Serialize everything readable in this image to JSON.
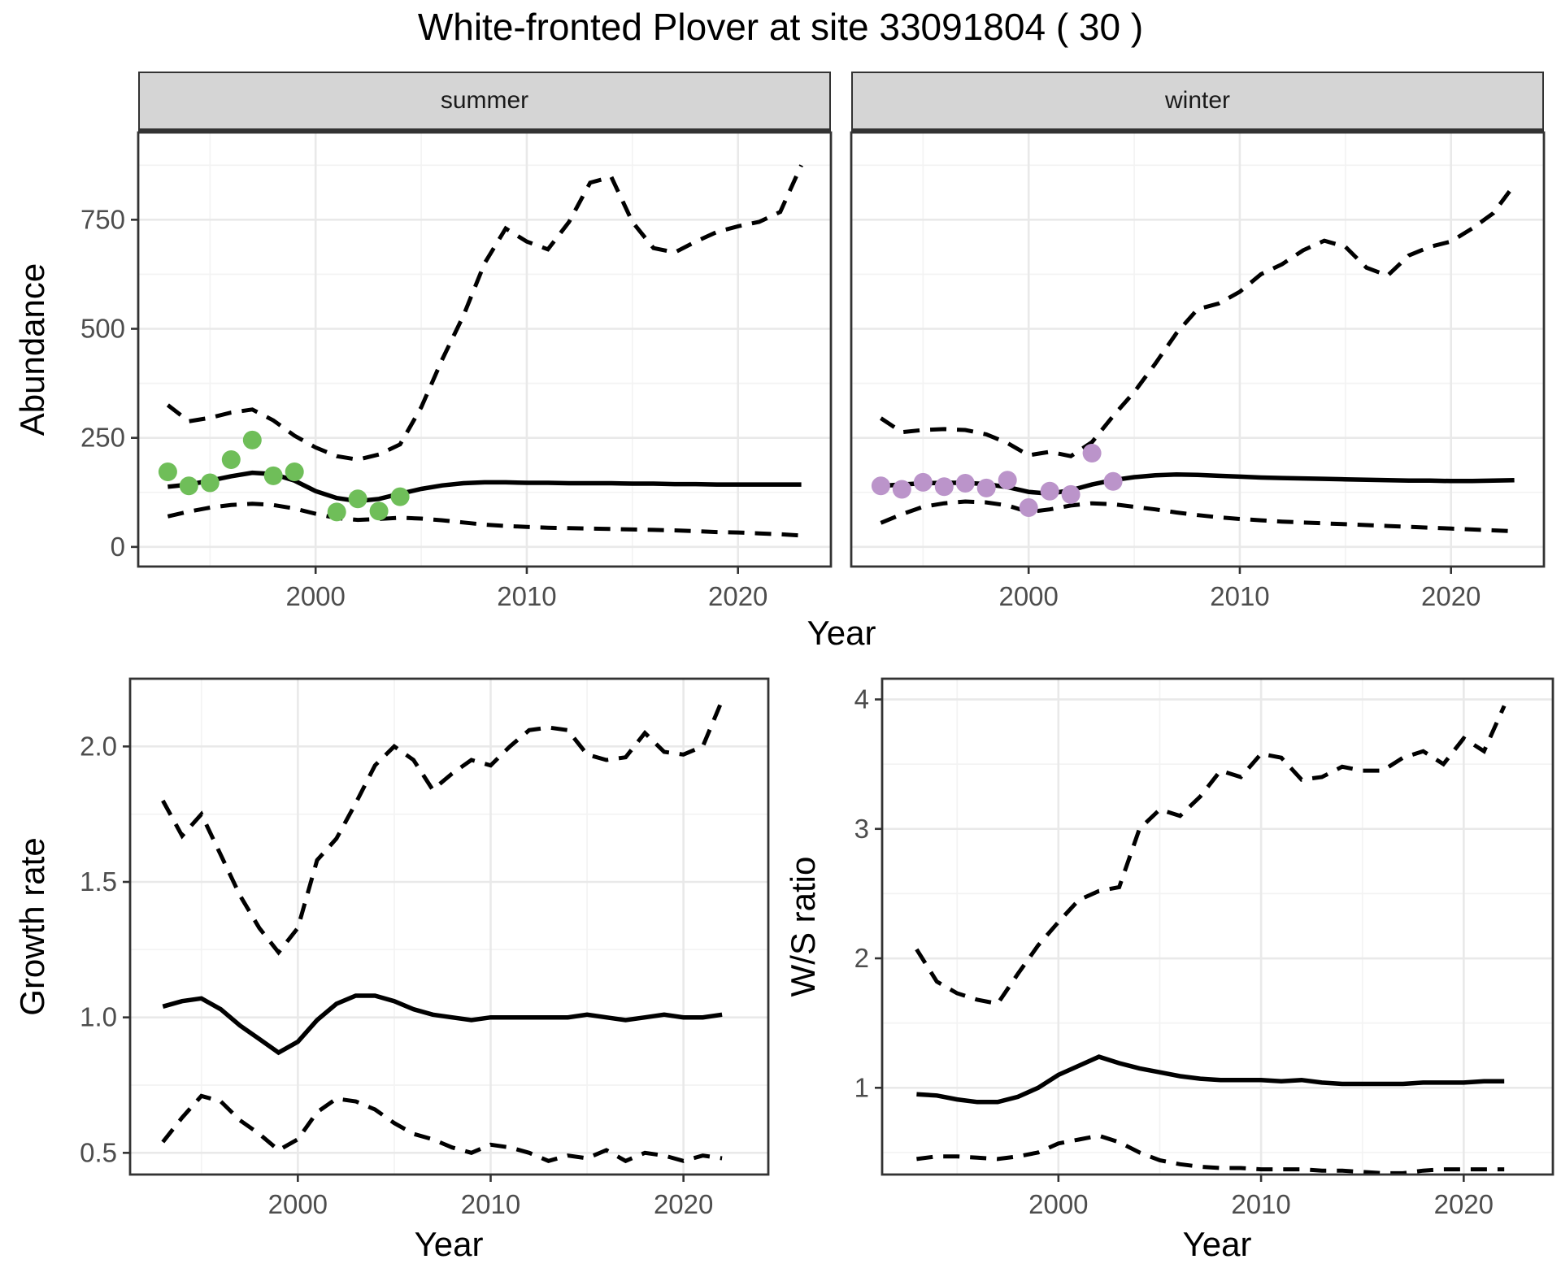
{
  "title": "White-fronted Plover at site 33091804 ( 30 )",
  "facets": {
    "summer": "summer",
    "winter": "winter"
  },
  "axis_titles": {
    "x": "Year",
    "abundance": "Abundance",
    "growth": "Growth rate",
    "ws": "W/S ratio"
  },
  "colors": {
    "point_summer": "#6FBE59",
    "point_winter": "#BB94CA",
    "ci_line": "#000000",
    "fit_line": "#000000",
    "grid_major": "#E9E9E9",
    "grid_minor": "#F3F3F3",
    "panel_border": "#333333",
    "strip_bg": "#D5D5D5",
    "strip_text": "#1A1A1A",
    "tick_label": "#4D4D4D",
    "axis_title": "#000000",
    "background": "#FFFFFF"
  },
  "chart_data": [
    {
      "id": "abundance-summer",
      "type": "line",
      "facet": "summer",
      "xlabel": "Year",
      "ylabel": "Abundance",
      "x_domain": [
        1991.6,
        2024.4
      ],
      "y_domain": [
        -45,
        950
      ],
      "x_ticks": [
        2000,
        2010,
        2020
      ],
      "x_tick_labels": [
        "2000",
        "2010",
        "2020"
      ],
      "x_minor": [
        1995,
        2005,
        2015
      ],
      "y_ticks": [
        0,
        250,
        500,
        750
      ],
      "y_tick_labels": [
        "0",
        "250",
        "500",
        "750"
      ],
      "y_minor": [
        125,
        375,
        625,
        875
      ],
      "series": [
        {
          "name": "upper-95ci",
          "style": "dashed",
          "x": [
            1993,
            1994,
            1995,
            1996,
            1997,
            1998,
            1999,
            2000,
            2001,
            2002,
            2003,
            2004,
            2005,
            2006,
            2007,
            2008,
            2009,
            2010,
            2011,
            2012,
            2013,
            2014,
            2015,
            2016,
            2017,
            2018,
            2019,
            2020,
            2021,
            2022,
            2023
          ],
          "y": [
            325,
            288,
            296,
            308,
            315,
            290,
            255,
            228,
            208,
            200,
            212,
            235,
            320,
            430,
            530,
            650,
            730,
            700,
            682,
            745,
            835,
            848,
            745,
            685,
            675,
            700,
            722,
            735,
            745,
            768,
            875
          ]
        },
        {
          "name": "median-fit",
          "style": "solid",
          "x": [
            1993,
            1994,
            1995,
            1996,
            1997,
            1998,
            1999,
            2000,
            2001,
            2002,
            2003,
            2004,
            2005,
            2006,
            2007,
            2008,
            2009,
            2010,
            2011,
            2012,
            2013,
            2014,
            2015,
            2016,
            2017,
            2018,
            2019,
            2020,
            2021,
            2022,
            2023
          ],
          "y": [
            138,
            143,
            152,
            162,
            170,
            167,
            152,
            128,
            112,
            105,
            110,
            122,
            133,
            141,
            146,
            148,
            148,
            147,
            147,
            146,
            146,
            146,
            145,
            145,
            144,
            144,
            143,
            143,
            143,
            143,
            143
          ]
        },
        {
          "name": "lower-95ci",
          "style": "dashed",
          "x": [
            1993,
            1994,
            1995,
            1996,
            1997,
            1998,
            1999,
            2000,
            2001,
            2002,
            2003,
            2004,
            2005,
            2006,
            2007,
            2008,
            2009,
            2010,
            2011,
            2012,
            2013,
            2014,
            2015,
            2016,
            2017,
            2018,
            2019,
            2020,
            2021,
            2022,
            2023
          ],
          "y": [
            70,
            81,
            90,
            96,
            99,
            96,
            88,
            76,
            66,
            62,
            64,
            67,
            65,
            61,
            56,
            51,
            48,
            46,
            44,
            43,
            42,
            41,
            40,
            39,
            38,
            36,
            34,
            33,
            31,
            29,
            26
          ]
        }
      ],
      "points": {
        "name": "observed-summer-counts",
        "color_key": "point_summer",
        "x": [
          1993,
          1994,
          1995,
          1996,
          1997,
          1998,
          1999,
          2001,
          2002,
          2003,
          2004
        ],
        "y": [
          172,
          140,
          147,
          200,
          245,
          163,
          172,
          80,
          110,
          82,
          115
        ]
      }
    },
    {
      "id": "abundance-winter",
      "type": "line",
      "facet": "winter",
      "xlabel": "Year",
      "ylabel": "Abundance",
      "x_domain": [
        1991.6,
        2024.4
      ],
      "y_domain": [
        -45,
        950
      ],
      "x_ticks": [
        2000,
        2010,
        2020
      ],
      "x_tick_labels": [
        "2000",
        "2010",
        "2020"
      ],
      "x_minor": [
        1995,
        2005,
        2015
      ],
      "y_ticks": [
        0,
        250,
        500,
        750
      ],
      "y_tick_labels": [
        "0",
        "250",
        "500",
        "750"
      ],
      "y_minor": [
        125,
        375,
        625,
        875
      ],
      "series": [
        {
          "name": "upper-95ci",
          "style": "dashed",
          "x": [
            1993,
            1994,
            1995,
            1996,
            1997,
            1998,
            1999,
            2000,
            2001,
            2002,
            2003,
            2004,
            2005,
            2006,
            2007,
            2008,
            2009,
            2010,
            2011,
            2012,
            2013,
            2014,
            2015,
            2016,
            2017,
            2018,
            2019,
            2020,
            2021,
            2022,
            2023
          ],
          "y": [
            295,
            263,
            268,
            270,
            268,
            258,
            238,
            210,
            218,
            208,
            240,
            300,
            355,
            420,
            490,
            545,
            558,
            585,
            625,
            648,
            680,
            702,
            688,
            640,
            622,
            668,
            688,
            700,
            730,
            765,
            830
          ]
        },
        {
          "name": "median-fit",
          "style": "solid",
          "x": [
            1993,
            1994,
            1995,
            1996,
            1997,
            1998,
            1999,
            2000,
            2001,
            2002,
            2003,
            2004,
            2005,
            2006,
            2007,
            2008,
            2009,
            2010,
            2011,
            2012,
            2013,
            2014,
            2015,
            2016,
            2017,
            2018,
            2019,
            2020,
            2021,
            2022,
            2023
          ],
          "y": [
            140,
            143,
            146,
            147,
            147,
            144,
            137,
            126,
            122,
            130,
            143,
            153,
            160,
            164,
            166,
            165,
            163,
            161,
            159,
            158,
            157,
            156,
            155,
            154,
            153,
            152,
            152,
            151,
            151,
            152,
            153
          ]
        },
        {
          "name": "lower-95ci",
          "style": "dashed",
          "x": [
            1993,
            1994,
            1995,
            1996,
            1997,
            1998,
            1999,
            2000,
            2001,
            2002,
            2003,
            2004,
            2005,
            2006,
            2007,
            2008,
            2009,
            2010,
            2011,
            2012,
            2013,
            2014,
            2015,
            2016,
            2017,
            2018,
            2019,
            2020,
            2021,
            2022,
            2023
          ],
          "y": [
            55,
            75,
            92,
            100,
            104,
            102,
            95,
            80,
            86,
            95,
            100,
            98,
            92,
            86,
            79,
            73,
            68,
            64,
            61,
            58,
            56,
            54,
            52,
            50,
            48,
            46,
            44,
            42,
            40,
            38,
            36
          ]
        }
      ],
      "points": {
        "name": "observed-winter-counts",
        "color_key": "point_winter",
        "x": [
          1993,
          1994,
          1995,
          1996,
          1997,
          1998,
          1999,
          2000,
          2001,
          2002,
          2003,
          2004
        ],
        "y": [
          140,
          132,
          148,
          138,
          146,
          135,
          153,
          90,
          128,
          120,
          215,
          150
        ]
      }
    },
    {
      "id": "growth-rate",
      "type": "line",
      "facet": null,
      "xlabel": "Year",
      "ylabel": "Growth rate",
      "x_domain": [
        1991.3,
        2024.4
      ],
      "y_domain": [
        0.42,
        2.25
      ],
      "x_ticks": [
        2000,
        2010,
        2020
      ],
      "x_tick_labels": [
        "2000",
        "2010",
        "2020"
      ],
      "x_minor": [
        1995,
        2005,
        2015
      ],
      "y_ticks": [
        0.5,
        1.0,
        1.5,
        2.0
      ],
      "y_tick_labels": [
        "0.5",
        "1.0",
        "1.5",
        "2.0"
      ],
      "y_minor": [
        0.75,
        1.25,
        1.75
      ],
      "series": [
        {
          "name": "upper-95ci",
          "style": "dashed",
          "x": [
            1993,
            1994,
            1995,
            1996,
            1997,
            1998,
            1999,
            2000,
            2001,
            2002,
            2003,
            2004,
            2005,
            2006,
            2007,
            2008,
            2009,
            2010,
            2011,
            2012,
            2013,
            2014,
            2015,
            2016,
            2017,
            2018,
            2019,
            2020,
            2021,
            2022
          ],
          "y": [
            1.8,
            1.67,
            1.75,
            1.6,
            1.45,
            1.33,
            1.24,
            1.33,
            1.58,
            1.66,
            1.79,
            1.93,
            2.0,
            1.95,
            1.84,
            1.9,
            1.95,
            1.93,
            2.0,
            2.06,
            2.07,
            2.06,
            1.97,
            1.95,
            1.96,
            2.05,
            1.98,
            1.97,
            2.0,
            2.17
          ]
        },
        {
          "name": "median-fit",
          "style": "solid",
          "x": [
            1993,
            1994,
            1995,
            1996,
            1997,
            1998,
            1999,
            2000,
            2001,
            2002,
            2003,
            2004,
            2005,
            2006,
            2007,
            2008,
            2009,
            2010,
            2011,
            2012,
            2013,
            2014,
            2015,
            2016,
            2017,
            2018,
            2019,
            2020,
            2021,
            2022
          ],
          "y": [
            1.04,
            1.06,
            1.07,
            1.03,
            0.97,
            0.92,
            0.87,
            0.91,
            0.99,
            1.05,
            1.08,
            1.08,
            1.06,
            1.03,
            1.01,
            1.0,
            0.99,
            1.0,
            1.0,
            1.0,
            1.0,
            1.0,
            1.01,
            1.0,
            0.99,
            1.0,
            1.01,
            1.0,
            1.0,
            1.01
          ]
        },
        {
          "name": "lower-95ci",
          "style": "dashed",
          "x": [
            1993,
            1994,
            1995,
            1996,
            1997,
            1998,
            1999,
            2000,
            2001,
            2002,
            2003,
            2004,
            2005,
            2006,
            2007,
            2008,
            2009,
            2010,
            2011,
            2012,
            2013,
            2014,
            2015,
            2016,
            2017,
            2018,
            2019,
            2020,
            2021,
            2022
          ],
          "y": [
            0.54,
            0.63,
            0.71,
            0.69,
            0.62,
            0.57,
            0.51,
            0.55,
            0.65,
            0.7,
            0.69,
            0.66,
            0.61,
            0.57,
            0.55,
            0.52,
            0.5,
            0.53,
            0.52,
            0.5,
            0.47,
            0.49,
            0.48,
            0.51,
            0.47,
            0.5,
            0.49,
            0.47,
            0.49,
            0.48
          ]
        }
      ],
      "points": null
    },
    {
      "id": "ws-ratio",
      "type": "line",
      "facet": null,
      "xlabel": "Year",
      "ylabel": "W/S ratio",
      "x_domain": [
        1991.3,
        2024.4
      ],
      "y_domain": [
        0.33,
        4.16
      ],
      "x_ticks": [
        2000,
        2010,
        2020
      ],
      "x_tick_labels": [
        "2000",
        "2010",
        "2020"
      ],
      "x_minor": [
        1995,
        2005,
        2015
      ],
      "y_ticks": [
        1,
        2,
        3,
        4
      ],
      "y_tick_labels": [
        "1",
        "2",
        "3",
        "4"
      ],
      "y_minor": [
        0.5,
        1.5,
        2.5,
        3.5
      ],
      "series": [
        {
          "name": "upper-95ci",
          "style": "dashed",
          "x": [
            1993,
            1994,
            1995,
            1996,
            1997,
            1998,
            1999,
            2000,
            2001,
            2002,
            2003,
            2004,
            2005,
            2006,
            2007,
            2008,
            2009,
            2010,
            2011,
            2012,
            2013,
            2014,
            2015,
            2016,
            2017,
            2018,
            2019,
            2020,
            2021,
            2022
          ],
          "y": [
            2.07,
            1.82,
            1.73,
            1.68,
            1.65,
            1.88,
            2.1,
            2.28,
            2.45,
            2.52,
            2.55,
            3.0,
            3.15,
            3.1,
            3.25,
            3.45,
            3.4,
            3.58,
            3.55,
            3.38,
            3.4,
            3.48,
            3.45,
            3.45,
            3.55,
            3.6,
            3.5,
            3.7,
            3.6,
            3.95
          ]
        },
        {
          "name": "median-fit",
          "style": "solid",
          "x": [
            1993,
            1994,
            1995,
            1996,
            1997,
            1998,
            1999,
            2000,
            2001,
            2002,
            2003,
            2004,
            2005,
            2006,
            2007,
            2008,
            2009,
            2010,
            2011,
            2012,
            2013,
            2014,
            2015,
            2016,
            2017,
            2018,
            2019,
            2020,
            2021,
            2022
          ],
          "y": [
            0.95,
            0.94,
            0.91,
            0.89,
            0.89,
            0.93,
            1.0,
            1.1,
            1.17,
            1.24,
            1.19,
            1.15,
            1.12,
            1.09,
            1.07,
            1.06,
            1.06,
            1.06,
            1.05,
            1.06,
            1.04,
            1.03,
            1.03,
            1.03,
            1.03,
            1.04,
            1.04,
            1.04,
            1.05,
            1.05
          ]
        },
        {
          "name": "lower-95ci",
          "style": "dashed",
          "x": [
            1993,
            1994,
            1995,
            1996,
            1997,
            1998,
            1999,
            2000,
            2001,
            2002,
            2003,
            2004,
            2005,
            2006,
            2007,
            2008,
            2009,
            2010,
            2011,
            2012,
            2013,
            2014,
            2015,
            2016,
            2017,
            2018,
            2019,
            2020,
            2021,
            2022
          ],
          "y": [
            0.45,
            0.47,
            0.47,
            0.46,
            0.45,
            0.47,
            0.5,
            0.57,
            0.6,
            0.63,
            0.58,
            0.5,
            0.44,
            0.41,
            0.39,
            0.38,
            0.38,
            0.37,
            0.37,
            0.37,
            0.36,
            0.36,
            0.35,
            0.34,
            0.34,
            0.36,
            0.37,
            0.37,
            0.37,
            0.37
          ]
        }
      ],
      "points": null
    }
  ]
}
